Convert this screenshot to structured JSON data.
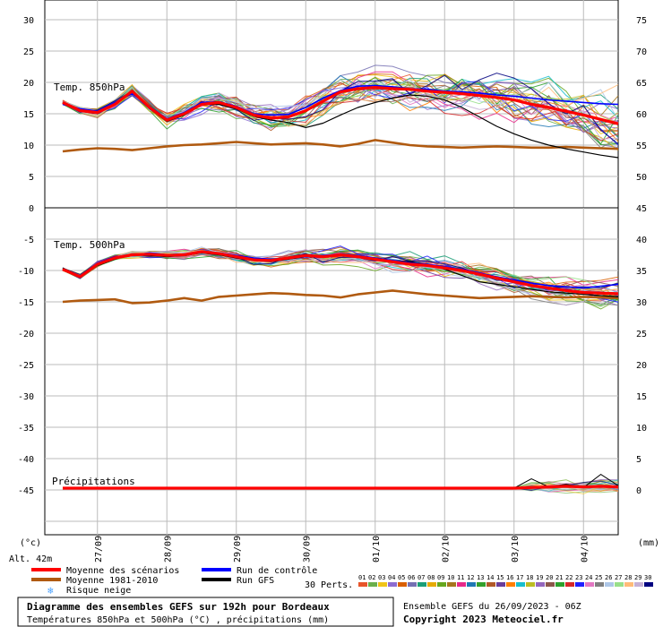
{
  "colors": {
    "mean": "#ff0000",
    "climate": "#b05a10",
    "control": "#0000ff",
    "gfs": "#000000",
    "grid": "#bbbbbb",
    "pert_palette": [
      "#e8552a",
      "#6ab04c",
      "#f0c419",
      "#8c6bd1",
      "#d95f02",
      "#7570b3",
      "#1b9e77",
      "#e6ab02",
      "#66a61e",
      "#a6761d",
      "#e7298a",
      "#1f78b4",
      "#33a02c",
      "#b15928",
      "#6a3d9a",
      "#ff7f00",
      "#17becf",
      "#bcbd22",
      "#9467bd",
      "#8c564b",
      "#2ca02c",
      "#d62728",
      "#1f1fff",
      "#e377c2",
      "#7f7f7f",
      "#aec7e8",
      "#98df8a",
      "#ffbb78",
      "#c5b0d5",
      "#000080"
    ]
  },
  "header": {
    "left_unit": "(°c)",
    "right_unit": "(mm)",
    "altitude": "Alt. 42m"
  },
  "panel1": {
    "label": "Temp. 850hPa"
  },
  "panel2": {
    "label": "Temp. 500hPa"
  },
  "panel3": {
    "label": "Précipitations"
  },
  "chart_data": [
    {
      "type": "line",
      "title": "Temp. 850hPa",
      "ylabel": "(°c)",
      "y_left_ticks": [
        "30",
        "25",
        "20",
        "15",
        "10",
        "5",
        "0"
      ],
      "y_right_ticks": [
        "75",
        "70",
        "65",
        "60",
        "55",
        "50"
      ],
      "ylim": [
        0,
        32
      ],
      "x": [
        0,
        6,
        12,
        18,
        24,
        30,
        36,
        42,
        48,
        54,
        60,
        66,
        72,
        78,
        84,
        90,
        96,
        102,
        108,
        114,
        120,
        126,
        132,
        138,
        144,
        150,
        156,
        162,
        168,
        174,
        180,
        186,
        192
      ],
      "series": [
        {
          "name": "Moyenne des scénarios",
          "values": [
            16.8,
            15.5,
            15.2,
            16.5,
            18.6,
            16.0,
            14.0,
            15.0,
            16.5,
            16.8,
            16.0,
            14.8,
            14.3,
            14.5,
            15.5,
            17.0,
            18.5,
            19.0,
            19.2,
            19.0,
            18.9,
            18.6,
            18.4,
            18.2,
            17.9,
            17.6,
            17.2,
            16.5,
            16.0,
            15.4,
            14.8,
            14.1,
            13.4
          ]
        },
        {
          "name": "Moyenne 1981-2010",
          "values": [
            9.0,
            9.3,
            9.5,
            9.4,
            9.2,
            9.5,
            9.8,
            10.0,
            10.1,
            10.3,
            10.5,
            10.3,
            10.1,
            10.2,
            10.3,
            10.1,
            9.8,
            10.2,
            10.8,
            10.4,
            10.0,
            9.8,
            9.7,
            9.6,
            9.7,
            9.8,
            9.7,
            9.6,
            9.6,
            9.7,
            9.6,
            9.5,
            9.4
          ]
        },
        {
          "name": "Run de contrôle",
          "values": [
            16.5,
            15.8,
            15.4,
            16.8,
            18.2,
            16.2,
            14.2,
            15.2,
            16.8,
            16.9,
            16.2,
            15.0,
            14.8,
            14.9,
            16.0,
            17.5,
            18.7,
            19.4,
            19.5,
            19.3,
            19.0,
            18.9,
            18.6,
            18.5,
            18.3,
            18.0,
            17.8,
            17.5,
            17.2,
            17.0,
            16.8,
            16.6,
            16.5
          ]
        },
        {
          "name": "Run GFS",
          "values": [
            16.8,
            15.4,
            15.0,
            16.6,
            18.5,
            15.8,
            13.8,
            14.8,
            16.4,
            16.5,
            15.8,
            14.6,
            14.0,
            13.6,
            12.8,
            13.5,
            14.8,
            16.0,
            16.8,
            17.5,
            18.0,
            17.8,
            17.2,
            16.0,
            14.5,
            13.0,
            11.8,
            10.8,
            10.0,
            9.4,
            8.9,
            8.4,
            8.0
          ]
        }
      ]
    },
    {
      "type": "line",
      "title": "Temp. 500hPa",
      "ylabel": "(°c)",
      "y_left_ticks": [
        "-5",
        "-10",
        "-15",
        "-20",
        "-25",
        "-30",
        "-35",
        "-40",
        "-45"
      ],
      "y_right_ticks": [
        "45",
        "40",
        "35",
        "30",
        "25",
        "20",
        "15",
        "10",
        "5",
        "0"
      ],
      "ylim": [
        -49,
        -0.5
      ],
      "x": [
        0,
        6,
        12,
        18,
        24,
        30,
        36,
        42,
        48,
        54,
        60,
        66,
        72,
        78,
        84,
        90,
        96,
        102,
        108,
        114,
        120,
        126,
        132,
        138,
        144,
        150,
        156,
        162,
        168,
        174,
        180,
        186,
        192
      ],
      "series": [
        {
          "name": "Moyenne des scénarios",
          "values": [
            -9.8,
            -11.0,
            -9.0,
            -8.0,
            -7.5,
            -7.4,
            -7.6,
            -7.5,
            -7.0,
            -7.3,
            -7.8,
            -8.3,
            -8.4,
            -8.0,
            -7.6,
            -7.8,
            -7.5,
            -7.8,
            -8.2,
            -8.6,
            -9.0,
            -9.2,
            -9.6,
            -10.0,
            -10.6,
            -11.2,
            -11.8,
            -12.4,
            -12.8,
            -13.2,
            -13.5,
            -13.6,
            -13.7
          ]
        },
        {
          "name": "Moyenne 1981-2010",
          "values": [
            -15.0,
            -14.8,
            -14.7,
            -14.6,
            -15.2,
            -15.1,
            -14.8,
            -14.4,
            -14.8,
            -14.2,
            -14.0,
            -13.8,
            -13.6,
            -13.7,
            -13.9,
            -14.0,
            -14.3,
            -13.8,
            -13.5,
            -13.2,
            -13.5,
            -13.8,
            -14.0,
            -14.2,
            -14.4,
            -14.3,
            -14.2,
            -14.1,
            -14.2,
            -14.3,
            -14.2,
            -14.3,
            -14.4
          ]
        },
        {
          "name": "Run de contrôle",
          "values": [
            -9.8,
            -11.2,
            -8.8,
            -7.8,
            -7.6,
            -7.2,
            -7.5,
            -7.4,
            -7.1,
            -7.2,
            -7.6,
            -8.0,
            -8.2,
            -8.0,
            -7.8,
            -7.6,
            -7.4,
            -7.6,
            -8.0,
            -8.4,
            -8.8,
            -9.0,
            -9.4,
            -9.8,
            -10.4,
            -11.0,
            -11.5,
            -12.0,
            -12.4,
            -12.6,
            -12.8,
            -12.5,
            -12.2
          ]
        },
        {
          "name": "Run GFS",
          "values": [
            -9.6,
            -11.0,
            -9.2,
            -8.2,
            -7.4,
            -7.6,
            -7.8,
            -7.6,
            -7.2,
            -7.5,
            -8.0,
            -8.4,
            -8.6,
            -8.2,
            -7.8,
            -7.9,
            -7.6,
            -7.7,
            -8.0,
            -8.4,
            -8.6,
            -9.0,
            -9.8,
            -10.8,
            -11.8,
            -12.2,
            -12.6,
            -13.0,
            -13.4,
            -13.6,
            -13.8,
            -14.0,
            -14.2
          ]
        }
      ]
    },
    {
      "type": "line",
      "title": "Précipitations",
      "ylabel": "(mm)",
      "y_right_ticks": [
        "5",
        "0"
      ],
      "ylim": [
        -1,
        7
      ],
      "x": [
        0,
        6,
        12,
        18,
        24,
        30,
        36,
        42,
        48,
        54,
        60,
        66,
        72,
        78,
        84,
        90,
        96,
        102,
        108,
        114,
        120,
        126,
        132,
        138,
        144,
        150,
        156,
        162,
        168,
        174,
        180,
        186,
        192
      ],
      "series": [
        {
          "name": "Moyenne des scénarios",
          "values": [
            0,
            0,
            0,
            0,
            0,
            0,
            0,
            0,
            0,
            0,
            0,
            0,
            0,
            0,
            0,
            0,
            0,
            0,
            0,
            0,
            0,
            0,
            0,
            0,
            0,
            0,
            0,
            0.1,
            0.2,
            0.3,
            0.2,
            0.3,
            0.2
          ]
        },
        {
          "name": "Run GFS",
          "values": [
            0,
            0,
            0,
            0,
            0,
            0,
            0,
            0,
            0,
            0,
            0,
            0,
            0,
            0,
            0,
            0,
            0,
            0,
            0,
            0,
            0,
            0,
            0,
            0,
            0,
            0,
            0,
            1.5,
            0.2,
            0.6,
            0.1,
            2.2,
            0.4
          ]
        }
      ]
    }
  ],
  "x_axis": {
    "dates": [
      "27/09",
      "28/09",
      "29/09",
      "30/09",
      "01/10",
      "02/10",
      "03/10",
      "04/10"
    ],
    "date_hours": [
      12,
      36,
      60,
      84,
      108,
      132,
      156,
      180
    ]
  },
  "legend": {
    "mean": "Moyenne des scénarios",
    "climate": "Moyenne 1981-2010",
    "snow": "Risque neige",
    "control": "Run de contrôle",
    "gfs": "Run GFS",
    "perts_label": "30 Perts.",
    "perts_numbers": [
      "01",
      "02",
      "03",
      "04",
      "05",
      "06",
      "07",
      "08",
      "09",
      "10",
      "11",
      "12",
      "13",
      "14",
      "15",
      "16",
      "17",
      "18",
      "19",
      "20",
      "21",
      "22",
      "23",
      "24",
      "25",
      "26",
      "27",
      "28",
      "29",
      "30"
    ]
  },
  "footer": {
    "title": "Diagramme des ensembles GEFS sur 192h pour Bordeaux",
    "subtitle": "Températures 850hPa et 500hPa (°C) , précipitations (mm)",
    "run_info": "Ensemble GEFS du 26/09/2023 - 06Z",
    "copyright": "Copyright 2023 Meteociel.fr"
  }
}
